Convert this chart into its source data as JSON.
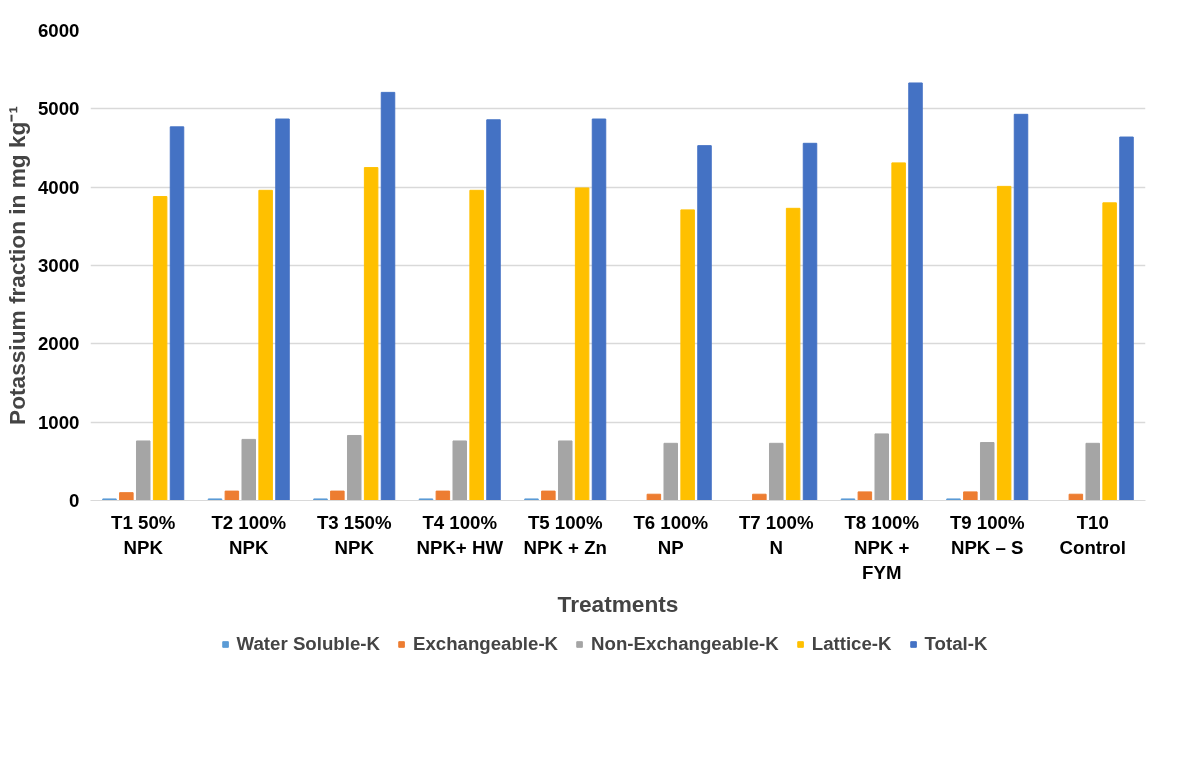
{
  "chart_data": {
    "type": "bar",
    "xlabel": "Treatments",
    "ylabel": "Potassium fraction in mg kg⁻¹",
    "categories": [
      "T1 50%\nNPK",
      "T2 100%\nNPK",
      "T3 150%\nNPK",
      "T4 100%\nNPK+ HW",
      "T5 100%\nNPK + Zn",
      "T6 100%\nNP",
      "T7 100%\nN",
      "T8 100%\nNPK +\nFYM",
      "T9 100%\nNPK – S",
      "T10\nControl"
    ],
    "series": [
      {
        "name": "Water Soluble-K",
        "color": "#5b9bd5",
        "values": [
          20,
          20,
          20,
          20,
          20,
          null,
          null,
          20,
          20,
          null
        ]
      },
      {
        "name": "Exchangeable-K",
        "color": "#ed7d31",
        "values": [
          100,
          120,
          120,
          120,
          120,
          80,
          80,
          110,
          110,
          80
        ]
      },
      {
        "name": "Non-Exchangeable-K",
        "color": "#a5a5a5",
        "values": [
          760,
          780,
          830,
          760,
          760,
          730,
          730,
          850,
          740,
          730
        ]
      },
      {
        "name": "Lattice-K",
        "color": "#ffc000",
        "values": [
          3880,
          3960,
          4250,
          3960,
          3990,
          3710,
          3730,
          4310,
          4010,
          3800
        ]
      },
      {
        "name": "Total-K",
        "color": "#4472c4",
        "values": [
          4770,
          4870,
          5210,
          4860,
          4870,
          4530,
          4560,
          5330,
          4930,
          4640
        ]
      }
    ],
    "ylim": [
      0,
      6000
    ],
    "yticks": [
      0,
      1000,
      2000,
      3000,
      4000,
      5000,
      6000
    ],
    "grid": "y",
    "legend": "bottom"
  }
}
